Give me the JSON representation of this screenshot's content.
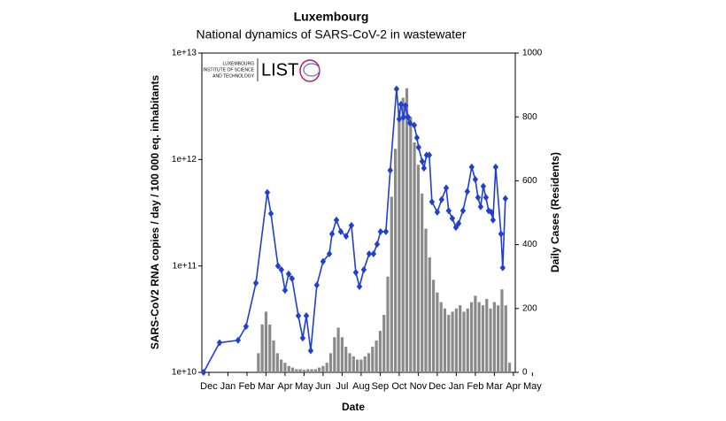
{
  "chart_data": {
    "type": "combo",
    "title": "Luxembourg",
    "subtitle": "National dynamics of SARS-CoV-2 in wastewater",
    "xlabel": "Date",
    "ylabel": "SARS-CoV2 RNA copies / day  / 100 000 eq. inhabitants",
    "y2label": "Daily Cases (Residents)",
    "xlim": [
      -0.37,
      16.1
    ],
    "xticks": [
      {
        "value": 0,
        "label": "Dec"
      },
      {
        "value": 1,
        "label": "Jan"
      },
      {
        "value": 2,
        "label": "Feb"
      },
      {
        "value": 3,
        "label": "Mar"
      },
      {
        "value": 4,
        "label": "Apr"
      },
      {
        "value": 5,
        "label": "May"
      },
      {
        "value": 6,
        "label": "Jun"
      },
      {
        "value": 7,
        "label": "Jul"
      },
      {
        "value": 8,
        "label": "Aug"
      },
      {
        "value": 9,
        "label": "Sep"
      },
      {
        "value": 10,
        "label": "Oct"
      },
      {
        "value": 11,
        "label": "Nov"
      },
      {
        "value": 12,
        "label": "Dec"
      },
      {
        "value": 13,
        "label": "Jan"
      },
      {
        "value": 14,
        "label": "Feb"
      },
      {
        "value": 15,
        "label": "Mar"
      },
      {
        "value": 16,
        "label": "Apr"
      },
      {
        "value": 17,
        "label": "May"
      }
    ],
    "ylog": true,
    "ylim": [
      10000000000,
      10000000000000
    ],
    "yticks": [
      {
        "value": 10000000000,
        "label": "1e+10"
      },
      {
        "value": 100000000000,
        "label": "1e+11"
      },
      {
        "value": 1000000000000,
        "label": "1e+12"
      },
      {
        "value": 10000000000000,
        "label": "1e+13"
      }
    ],
    "y2lim": [
      0,
      1000
    ],
    "y2ticks": [
      0,
      200,
      400,
      600,
      800,
      1000
    ],
    "series": [
      {
        "type": "bar",
        "axis": "y2",
        "color": "#8a8a8a",
        "x": [
          2.6,
          2.8,
          3.0,
          3.2,
          3.4,
          3.6,
          3.8,
          4.0,
          4.2,
          4.4,
          4.6,
          4.8,
          5.0,
          5.2,
          5.4,
          5.6,
          5.8,
          6.0,
          6.2,
          6.4,
          6.6,
          6.8,
          7.0,
          7.2,
          7.4,
          7.6,
          7.8,
          8.0,
          8.2,
          8.4,
          8.6,
          8.8,
          9.0,
          9.2,
          9.4,
          9.6,
          9.8,
          10.0,
          10.2,
          10.4,
          10.6,
          10.8,
          11.0,
          11.2,
          11.4,
          11.6,
          11.8,
          12.0,
          12.2,
          12.4,
          12.6,
          12.8,
          13.0,
          13.2,
          13.4,
          13.6,
          13.8,
          14.0,
          14.2,
          14.4,
          14.6,
          14.8,
          15.0,
          15.2,
          15.4,
          15.6,
          15.8
        ],
        "values": [
          60,
          150,
          190,
          150,
          100,
          60,
          40,
          30,
          20,
          15,
          10,
          10,
          8,
          10,
          10,
          10,
          15,
          20,
          30,
          60,
          110,
          140,
          110,
          80,
          60,
          50,
          40,
          40,
          50,
          60,
          80,
          100,
          130,
          180,
          300,
          550,
          700,
          820,
          860,
          890,
          800,
          720,
          650,
          560,
          450,
          360,
          290,
          250,
          220,
          200,
          180,
          190,
          200,
          210,
          190,
          200,
          220,
          240,
          220,
          210,
          230,
          200,
          220,
          210,
          260,
          210,
          30
        ]
      },
      {
        "type": "line",
        "color": "#1f3fd1",
        "x": [
          -0.28,
          0.56,
          1.53,
          1.95,
          2.47,
          3.07,
          3.26,
          3.63,
          3.81,
          4.0,
          4.19,
          4.37,
          4.7,
          4.93,
          5.12,
          5.35,
          5.67,
          6.0,
          6.33,
          6.47,
          6.7,
          6.93,
          7.21,
          7.49,
          7.72,
          7.91,
          8.14,
          8.42,
          8.65,
          8.84,
          9.02,
          9.3,
          9.53,
          9.86,
          10.0,
          10.09,
          10.23,
          10.33,
          10.47,
          10.56,
          10.79,
          10.93,
          11.02,
          11.21,
          11.3,
          11.44,
          11.58,
          11.72,
          12.0,
          12.23,
          12.47,
          12.6,
          12.79,
          12.98,
          13.12,
          13.35,
          13.58,
          13.81,
          14.0,
          14.14,
          14.28,
          14.42,
          14.56,
          14.7,
          14.84,
          14.93,
          15.07,
          15.35,
          15.44,
          15.58
        ],
        "values": [
          10000000000,
          19000000000,
          20000000000,
          27000000000,
          69000000000,
          490000000000,
          310000000000,
          100000000000,
          92000000000,
          59000000000,
          84000000000,
          76000000000,
          34000000000,
          21000000000,
          34000000000,
          16000000000,
          66000000000,
          110000000000,
          130000000000,
          200000000000,
          270000000000,
          210000000000,
          190000000000,
          240000000000,
          87000000000,
          64000000000,
          92000000000,
          130000000000,
          130000000000,
          160000000000,
          210000000000,
          210000000000,
          790000000000,
          4600000000000,
          2400000000000,
          3300000000000,
          2500000000000,
          3200000000000,
          2500000000000,
          2200000000000,
          2100000000000,
          1600000000000,
          1300000000000,
          960000000000,
          830000000000,
          1100000000000,
          1100000000000,
          400000000000,
          320000000000,
          420000000000,
          540000000000,
          330000000000,
          280000000000,
          230000000000,
          250000000000,
          330000000000,
          500000000000,
          850000000000,
          650000000000,
          440000000000,
          360000000000,
          560000000000,
          440000000000,
          330000000000,
          320000000000,
          270000000000,
          850000000000,
          200000000000,
          96000000000,
          430000000000
        ]
      }
    ]
  },
  "logo": {
    "text_lines": [
      "LUXEMBOURG",
      "INSTITUTE OF SCIENCE",
      "AND TECHNOLOGY"
    ],
    "wordmark": "LIST"
  }
}
